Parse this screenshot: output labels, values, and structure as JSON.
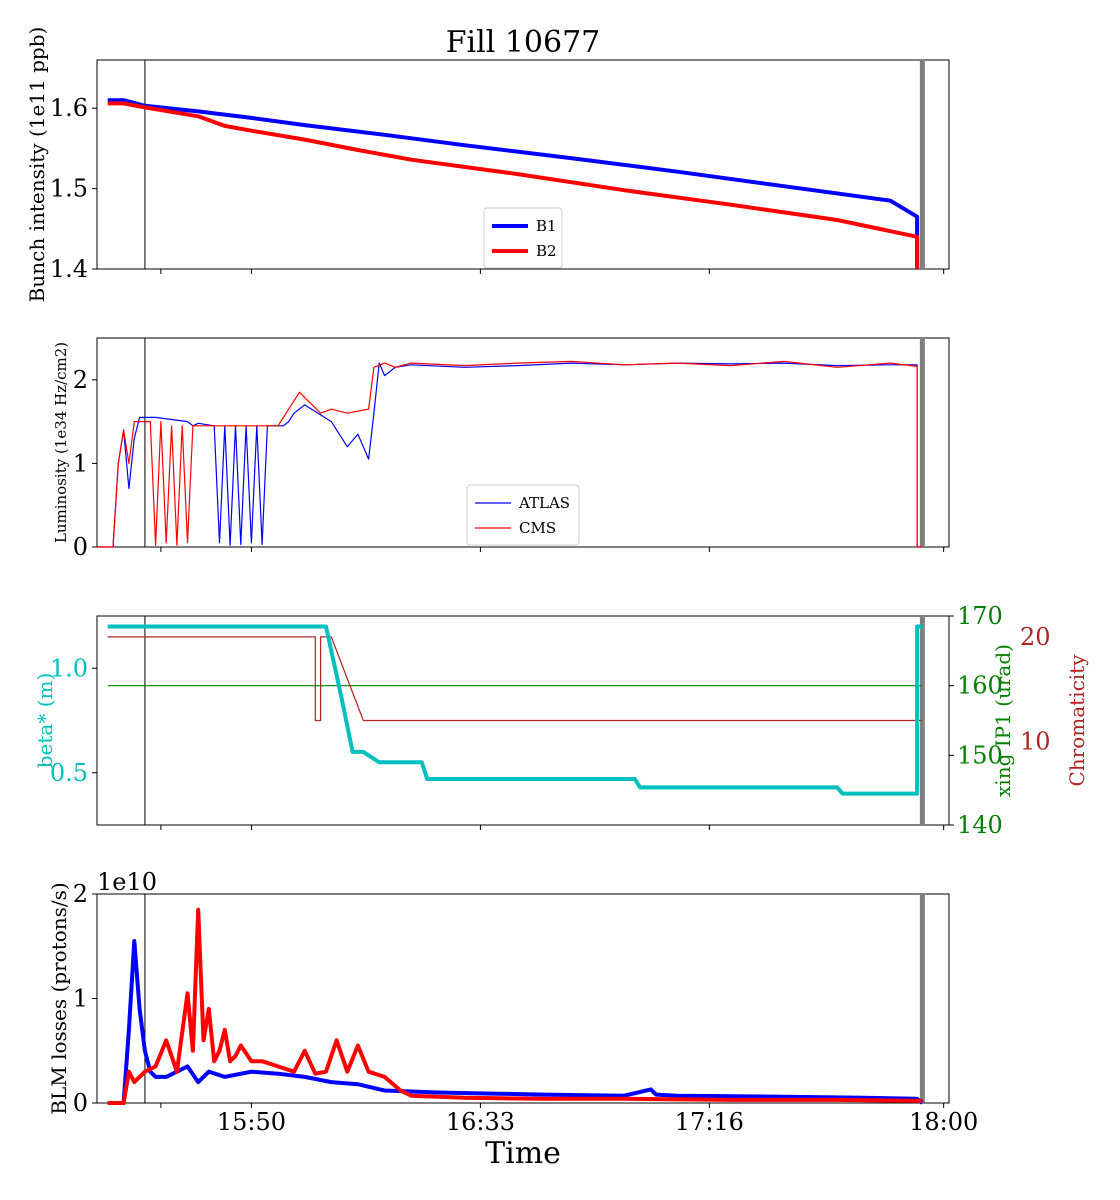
{
  "figure": {
    "title": "Fill 10677",
    "xlabel": "Time",
    "x_tick_labels": [
      "15:50",
      "16:33",
      "17:16",
      "18:00"
    ]
  },
  "colors": {
    "b1": "#0000ff",
    "b2": "#ff0000",
    "beta": "#00bfbf",
    "xing": "#008000",
    "chroma": "#b22222",
    "marker_grey": "#808080"
  },
  "chart_data": [
    {
      "type": "line",
      "panel": "intensity",
      "ylabel": "Bunch intensity (1e11 ppb)",
      "ylim": [
        1.4,
        1.66
      ],
      "y_ticks": [
        "1.4",
        "1.5",
        "1.6"
      ],
      "legend_placement": "lower-center",
      "series": [
        {
          "name": "B1",
          "x": [
            "15:23",
            "15:26",
            "15:30",
            "15:40",
            "15:50",
            "16:00",
            "16:15",
            "16:30",
            "16:50",
            "17:10",
            "17:30",
            "17:50",
            "17:55",
            "17:55"
          ],
          "values": [
            1.61,
            1.61,
            1.603,
            1.596,
            1.588,
            1.579,
            1.567,
            1.554,
            1.538,
            1.521,
            1.503,
            1.485,
            1.465,
            1.4
          ]
        },
        {
          "name": "B2",
          "x": [
            "15:23",
            "15:26",
            "15:30",
            "15:40",
            "15:45",
            "15:50",
            "16:00",
            "16:10",
            "16:20",
            "16:40",
            "17:00",
            "17:20",
            "17:40",
            "17:55",
            "17:55"
          ],
          "values": [
            1.606,
            1.606,
            1.601,
            1.59,
            1.578,
            1.572,
            1.561,
            1.548,
            1.536,
            1.518,
            1.498,
            1.48,
            1.461,
            1.44,
            1.4
          ]
        }
      ]
    },
    {
      "type": "line",
      "panel": "luminosity",
      "ylabel": "Luminosity (1e34 Hz/cm2)",
      "ylim": [
        0,
        2.5
      ],
      "y_ticks": [
        "0",
        "1",
        "2"
      ],
      "legend_placement": "lower-center",
      "series": [
        {
          "name": "ATLAS",
          "x": [
            "15:21",
            "15:24",
            "15:25",
            "15:26",
            "15:27",
            "15:28",
            "15:29",
            "15:30",
            "15:31",
            "15:32",
            "15:38",
            "15:39",
            "15:40",
            "15:43",
            "15:44",
            "15:45",
            "15:46",
            "15:47",
            "15:48",
            "15:49",
            "15:50",
            "15:51",
            "15:52",
            "15:53",
            "15:54",
            "15:55",
            "15:56",
            "15:57",
            "15:58",
            "16:00",
            "16:05",
            "16:08",
            "16:10",
            "16:12",
            "16:13",
            "16:14",
            "16:15",
            "16:17",
            "16:20",
            "16:30",
            "16:40",
            "16:50",
            "17:00",
            "17:10",
            "17:20",
            "17:30",
            "17:40",
            "17:50",
            "17:55",
            "17:55",
            "17:56"
          ],
          "values": [
            0,
            0,
            1.0,
            1.4,
            0.7,
            1.3,
            1.55,
            1.55,
            1.55,
            1.55,
            1.5,
            1.45,
            1.48,
            1.45,
            0.05,
            1.45,
            0.02,
            1.45,
            0.03,
            1.45,
            0.05,
            1.45,
            0.03,
            1.45,
            1.45,
            1.45,
            1.45,
            1.5,
            1.6,
            1.7,
            1.5,
            1.2,
            1.35,
            1.05,
            1.6,
            2.2,
            2.05,
            2.15,
            2.18,
            2.15,
            2.17,
            2.2,
            2.18,
            2.2,
            2.19,
            2.2,
            2.17,
            2.18,
            2.18,
            0,
            0
          ]
        },
        {
          "name": "CMS",
          "x": [
            "15:21",
            "15:24",
            "15:25",
            "15:26",
            "15:27",
            "15:28",
            "15:29",
            "15:31",
            "15:32",
            "15:33",
            "15:34",
            "15:35",
            "15:36",
            "15:37",
            "15:38",
            "15:39",
            "15:40",
            "15:41",
            "15:42",
            "15:43",
            "15:44",
            "15:45",
            "15:46",
            "15:48",
            "15:50",
            "15:55",
            "15:59",
            "16:03",
            "16:05",
            "16:08",
            "16:12",
            "16:13",
            "16:15",
            "16:17",
            "16:20",
            "16:30",
            "16:40",
            "16:50",
            "17:00",
            "17:10",
            "17:20",
            "17:30",
            "17:40",
            "17:50",
            "17:55",
            "17:55",
            "17:56"
          ],
          "values": [
            0,
            0,
            1.0,
            1.4,
            1.0,
            1.5,
            1.5,
            1.5,
            0.02,
            1.5,
            0.05,
            1.45,
            0.02,
            1.45,
            0.05,
            1.45,
            1.45,
            1.45,
            1.45,
            1.45,
            1.45,
            1.45,
            1.45,
            1.45,
            1.45,
            1.45,
            1.85,
            1.6,
            1.65,
            1.6,
            1.65,
            2.15,
            2.2,
            2.15,
            2.2,
            2.17,
            2.2,
            2.22,
            2.18,
            2.2,
            2.17,
            2.22,
            2.15,
            2.2,
            2.16,
            0,
            0
          ]
        }
      ]
    },
    {
      "type": "line",
      "panel": "optics",
      "ylabel_left": "beta* (m)",
      "ylabel_right1": "xing IP1 (urad)",
      "ylabel_right2": "Chromaticity",
      "ylim_left": [
        0.25,
        1.25
      ],
      "ylim_right1": [
        140,
        170
      ],
      "ylim_right2": [
        2,
        22
      ],
      "y_ticks_left": [
        "0.5",
        "1.0"
      ],
      "y_ticks_right1": [
        "140",
        "150",
        "160",
        "170"
      ],
      "y_ticks_right2": [
        "10",
        "20"
      ],
      "series": [
        {
          "name": "beta*",
          "axis": "left",
          "x": [
            "15:23",
            "16:04",
            "16:07",
            "16:09",
            "16:11",
            "16:14",
            "16:15",
            "16:22",
            "16:23",
            "17:02",
            "17:03",
            "17:40",
            "17:41",
            "17:55",
            "17:55",
            "17:56"
          ],
          "values": [
            1.2,
            1.2,
            0.85,
            0.6,
            0.6,
            0.55,
            0.55,
            0.55,
            0.47,
            0.47,
            0.43,
            0.43,
            0.4,
            0.4,
            1.2,
            1.2
          ]
        },
        {
          "name": "xing IP1",
          "axis": "right1",
          "x": [
            "15:23",
            "17:56"
          ],
          "values": [
            160,
            160
          ]
        },
        {
          "name": "Chromaticity",
          "axis": "right2",
          "x": [
            "15:23",
            "16:02",
            "16:02",
            "16:03",
            "16:03",
            "16:05",
            "16:11",
            "17:56"
          ],
          "values": [
            20,
            20,
            12,
            12,
            20,
            20,
            12,
            12
          ]
        }
      ]
    },
    {
      "type": "line",
      "panel": "losses",
      "ylabel": "BLM losses (protons/s)",
      "offset_text": "1e10",
      "ylim": [
        0,
        2.0
      ],
      "y_ticks": [
        "0",
        "1",
        "2"
      ],
      "series": [
        {
          "name": "B1",
          "x": [
            "15:23",
            "15:26",
            "15:27",
            "15:28",
            "15:29",
            "15:30",
            "15:31",
            "15:32",
            "15:34",
            "15:36",
            "15:38",
            "15:40",
            "15:42",
            "15:45",
            "15:50",
            "15:55",
            "16:00",
            "16:05",
            "16:10",
            "16:15",
            "16:25",
            "16:35",
            "16:45",
            "17:00",
            "17:05",
            "17:06",
            "17:10",
            "17:30",
            "17:45",
            "17:55",
            "17:56"
          ],
          "values": [
            0,
            0,
            0.7,
            1.55,
            0.9,
            0.5,
            0.3,
            0.25,
            0.25,
            0.3,
            0.35,
            0.2,
            0.3,
            0.25,
            0.3,
            0.28,
            0.25,
            0.2,
            0.18,
            0.12,
            0.1,
            0.09,
            0.08,
            0.07,
            0.13,
            0.08,
            0.07,
            0.06,
            0.05,
            0.04,
            0.0
          ]
        },
        {
          "name": "B2",
          "x": [
            "15:23",
            "15:26",
            "15:27",
            "15:28",
            "15:30",
            "15:32",
            "15:34",
            "15:36",
            "15:38",
            "15:39",
            "15:40",
            "15:41",
            "15:42",
            "15:43",
            "15:44",
            "15:45",
            "15:46",
            "15:47",
            "15:48",
            "15:50",
            "15:52",
            "15:55",
            "15:58",
            "16:00",
            "16:02",
            "16:04",
            "16:06",
            "16:08",
            "16:10",
            "16:12",
            "16:15",
            "16:18",
            "16:20",
            "16:30",
            "16:45",
            "17:00",
            "17:20",
            "17:40",
            "17:56"
          ],
          "values": [
            0,
            0,
            0.3,
            0.2,
            0.3,
            0.35,
            0.6,
            0.3,
            1.05,
            0.5,
            1.85,
            0.6,
            0.9,
            0.4,
            0.5,
            0.7,
            0.4,
            0.45,
            0.55,
            0.4,
            0.4,
            0.35,
            0.3,
            0.5,
            0.28,
            0.3,
            0.6,
            0.3,
            0.55,
            0.3,
            0.25,
            0.12,
            0.07,
            0.05,
            0.04,
            0.04,
            0.03,
            0.03,
            0.02
          ]
        }
      ]
    }
  ],
  "markers": {
    "vertical_black_time": "15:30",
    "vertical_grey_time": "17:56"
  }
}
